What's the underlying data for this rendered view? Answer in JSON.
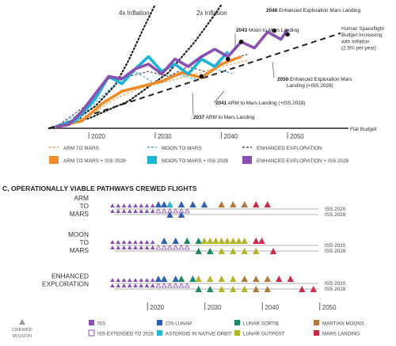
{
  "chart_data": [
    {
      "type": "line",
      "title": "",
      "xlabel": "",
      "ylabel": "",
      "x_ticks": [
        2020,
        2030,
        2040,
        2050
      ],
      "xlim": [
        2014,
        2058
      ],
      "ylim": [
        0,
        100
      ],
      "grid": false,
      "budget_curves": [
        {
          "name": "4x Inflation",
          "style": "dotted",
          "points": [
            [
              2014,
              0
            ],
            [
              2018,
              7
            ],
            [
              2021,
              18
            ],
            [
              2024,
              35
            ],
            [
              2026,
              55
            ],
            [
              2028,
              78
            ],
            [
              2030,
              100
            ]
          ]
        },
        {
          "name": "2x Inflation",
          "style": "dotted",
          "points": [
            [
              2014,
              0
            ],
            [
              2020,
              8
            ],
            [
              2026,
              22
            ],
            [
              2032,
              45
            ],
            [
              2036,
              70
            ],
            [
              2039,
              92
            ],
            [
              2040,
              100
            ]
          ]
        },
        {
          "name": "Human Spaceflight Budget Increasing with Inflation (2.5% per year)",
          "style": "dashed",
          "points": [
            [
              2014,
              0
            ],
            [
              2058,
              77
            ]
          ]
        },
        {
          "name": "Flat Budget",
          "style": "solid",
          "points": [
            [
              2014,
              0
            ],
            [
              2058,
              0
            ]
          ]
        }
      ],
      "curve_labels": {
        "inflation_4x": "4x Inflation",
        "inflation_2x": "2x Inflation",
        "budget_growth": "Human Spaceflight Budget Increasing with Inflation (2.5% per year)",
        "flat": "Flat Budget"
      },
      "series": [
        {
          "name": "ARM TO MARS",
          "style": "dashed",
          "color": "#f5a05a",
          "points": [
            [
              2015,
              1
            ],
            [
              2020,
              10
            ],
            [
              2024,
              24
            ],
            [
              2028,
              33
            ],
            [
              2032,
              38
            ],
            [
              2036,
              44
            ],
            [
              2040,
              50
            ],
            [
              2044,
              55
            ]
          ]
        },
        {
          "name": "MOON TO MARS",
          "style": "dashed",
          "color": "#3fb8d6",
          "points": [
            [
              2015,
              1
            ],
            [
              2020,
              16
            ],
            [
              2024,
              36
            ],
            [
              2027,
              46
            ],
            [
              2030,
              36
            ],
            [
              2033,
              44
            ],
            [
              2036,
              40
            ],
            [
              2039,
              48
            ],
            [
              2042,
              44
            ]
          ]
        },
        {
          "name": "ENHANCED EXPLORATION",
          "style": "dashed",
          "color": "#555555",
          "points": [
            [
              2015,
              1
            ],
            [
              2020,
              20
            ],
            [
              2023,
              40
            ],
            [
              2026,
              42
            ],
            [
              2029,
              46
            ],
            [
              2032,
              42
            ],
            [
              2035,
              50
            ],
            [
              2038,
              45
            ],
            [
              2041,
              55
            ],
            [
              2044,
              60
            ]
          ]
        },
        {
          "name": "ARM TO MARS + ISS 2028",
          "style": "solid",
          "color": "#f28c28",
          "points": [
            [
              2015,
              1
            ],
            [
              2019,
              6
            ],
            [
              2022,
              20
            ],
            [
              2025,
              30
            ],
            [
              2028,
              34
            ],
            [
              2031,
              38
            ],
            [
              2034,
              45
            ],
            [
              2037,
              41
            ],
            [
              2040,
              52
            ],
            [
              2043,
              58
            ]
          ]
        },
        {
          "name": "MOON TO MARS + ISS 2028",
          "style": "solid",
          "color": "#1bb3d9",
          "points": [
            [
              2015,
              1
            ],
            [
              2018,
              6
            ],
            [
              2021,
              24
            ],
            [
              2023,
              42
            ],
            [
              2025,
              36
            ],
            [
              2027,
              48
            ],
            [
              2029,
              58
            ],
            [
              2031,
              46
            ],
            [
              2033,
              52
            ],
            [
              2035,
              44
            ],
            [
              2037,
              56
            ],
            [
              2039,
              50
            ],
            [
              2041,
              62
            ]
          ]
        },
        {
          "name": "ENHANCED EXPLORATION + ISS 2028",
          "style": "solid",
          "color": "#8a4fb2",
          "points": [
            [
              2015,
              1
            ],
            [
              2017,
              3
            ],
            [
              2019,
              14
            ],
            [
              2021,
              28
            ],
            [
              2023,
              42
            ],
            [
              2025,
              40
            ],
            [
              2027,
              48
            ],
            [
              2029,
              52
            ],
            [
              2031,
              44
            ],
            [
              2033,
              56
            ],
            [
              2035,
              50
            ],
            [
              2037,
              58
            ],
            [
              2039,
              64
            ],
            [
              2041,
              58
            ],
            [
              2043,
              70
            ],
            [
              2045,
              65
            ],
            [
              2047,
              78
            ],
            [
              2049,
              72
            ],
            [
              2050,
              80
            ]
          ]
        }
      ],
      "legend_position": "bottom",
      "annotations": [
        {
          "text": "2048 Enhanced Exploration Mars Landing",
          "bold": "2048",
          "x": 2048,
          "y": 79
        },
        {
          "text": "2043 Moon to Mars Landing",
          "bold": "2043",
          "x": 2043,
          "y": 70
        },
        {
          "text": "2050 Enhanced Exploration Mars Landing (+ISS 2028)",
          "bold": "2050",
          "x": 2050,
          "y": 76
        },
        {
          "text": "2041 ARM to Mars Landing (+ISS 2028)",
          "bold": "2041",
          "x": 2041,
          "y": 56
        },
        {
          "text": "2037 ARM to Mars Landing",
          "bold": "2037",
          "x": 2037,
          "y": 42
        }
      ]
    },
    {
      "type": "scatter",
      "title": "C, OPERATIONALLY VIABLE PATHWAYS CREWED FLIGHTS",
      "x_ticks": [
        2020,
        2030,
        2040,
        2050
      ],
      "categories": [
        "ARM TO MARS",
        "MOON TO MARS",
        "ENHANCED EXPLORATION"
      ],
      "category_labels": [
        [
          "ARM",
          "TO",
          "MARS"
        ],
        [
          "MOON",
          "TO",
          "MARS"
        ],
        [
          "ENHANCED",
          "EXPLORATION"
        ]
      ],
      "row_end_labels": [
        "ISS 2020",
        "ISS 2028"
      ],
      "mission_types": [
        {
          "name": "ISS",
          "color": "#8a4fb2",
          "style": "filled"
        },
        {
          "name": "ISS EXTENDED TO 2028",
          "color": "#8a4fb2",
          "style": "outline"
        },
        {
          "name": "CIS-LUNAR",
          "color": "#2f5fb5",
          "style": "filled"
        },
        {
          "name": "ASTEROID IN NATIVE ORBIT",
          "color": "#2ab3d3",
          "style": "filled"
        },
        {
          "name": "LUNAR SORTIE",
          "color": "#1a8a62",
          "style": "filled"
        },
        {
          "name": "LUNAR OUTPOST",
          "color": "#b5b528",
          "style": "filled"
        },
        {
          "name": "MARTIAN MOONS",
          "color": "#b07a3a",
          "style": "filled"
        },
        {
          "name": "MARS LANDING",
          "color": "#cc2b4a",
          "style": "filled"
        }
      ],
      "flights": [
        {
          "row": 0,
          "lane": 0,
          "years": [
            2015,
            2016,
            2017,
            2018,
            2019,
            2020,
            2021,
            2022
          ],
          "type": "ISS"
        },
        {
          "row": 0,
          "lane": 0,
          "years": [
            2023,
            2024
          ],
          "type": "CIS-LUNAR"
        },
        {
          "row": 0,
          "lane": 0,
          "years": [
            2025
          ],
          "type": "ASTEROID IN NATIVE ORBIT"
        },
        {
          "row": 0,
          "lane": 0,
          "years": [
            2027,
            2029,
            2031
          ],
          "type": "CIS-LUNAR"
        },
        {
          "row": 0,
          "lane": 0,
          "years": [
            2034,
            2036,
            2038
          ],
          "type": "MARTIAN MOONS"
        },
        {
          "row": 0,
          "lane": 0,
          "years": [
            2040,
            2042
          ],
          "type": "MARS LANDING"
        },
        {
          "row": 0,
          "lane": 1,
          "years": [
            2015,
            2016,
            2017,
            2018,
            2019,
            2020,
            2021,
            2022
          ],
          "type": "ISS"
        },
        {
          "row": 0,
          "lane": 1,
          "years": [
            2023,
            2024,
            2025,
            2026,
            2027,
            2028
          ],
          "type": "ISS EXTENDED TO 2028"
        },
        {
          "row": 0,
          "lane": 2,
          "years": [
            2025,
            2027
          ],
          "type": "CIS-LUNAR"
        },
        {
          "row": 1,
          "lane": 0,
          "years": [
            2015,
            2016,
            2017,
            2018,
            2019,
            2020,
            2021,
            2022
          ],
          "type": "ISS"
        },
        {
          "row": 1,
          "lane": 0,
          "years": [
            2024,
            2026
          ],
          "type": "CIS-LUNAR"
        },
        {
          "row": 1,
          "lane": 0,
          "years": [
            2028,
            2030
          ],
          "type": "LUNAR SORTIE"
        },
        {
          "row": 1,
          "lane": 0,
          "years": [
            2031,
            2032,
            2033,
            2034,
            2035,
            2036,
            2037,
            2038
          ],
          "type": "LUNAR OUTPOST"
        },
        {
          "row": 1,
          "lane": 0,
          "years": [
            2040,
            2041
          ],
          "type": "MARS LANDING"
        },
        {
          "row": 1,
          "lane": 1,
          "years": [
            2015,
            2016,
            2017,
            2018,
            2019,
            2020,
            2021,
            2022
          ],
          "type": "ISS"
        },
        {
          "row": 1,
          "lane": 1,
          "years": [
            2023,
            2024,
            2025,
            2026,
            2027,
            2028
          ],
          "type": "ISS EXTENDED TO 2028"
        },
        {
          "row": 1,
          "lane": 2,
          "years": [
            2030,
            2032
          ],
          "type": "LUNAR SORTIE"
        },
        {
          "row": 1,
          "lane": 2,
          "years": [
            2034,
            2036,
            2038,
            2040
          ],
          "type": "LUNAR OUTPOST"
        },
        {
          "row": 1,
          "lane": 2,
          "years": [
            2043
          ],
          "type": "MARS LANDING"
        },
        {
          "row": 2,
          "lane": 0,
          "years": [
            2015,
            2016,
            2017,
            2018,
            2019,
            2020,
            2021,
            2022
          ],
          "type": "ISS"
        },
        {
          "row": 2,
          "lane": 0,
          "years": [
            2023,
            2024,
            2026
          ],
          "type": "CIS-LUNAR"
        },
        {
          "row": 2,
          "lane": 0,
          "years": [
            2027,
            2029
          ],
          "type": "LUNAR SORTIE"
        },
        {
          "row": 2,
          "lane": 0,
          "years": [
            2030,
            2032,
            2034,
            2036
          ],
          "type": "LUNAR OUTPOST"
        },
        {
          "row": 2,
          "lane": 0,
          "years": [
            2038,
            2040,
            2042
          ],
          "type": "MARTIAN MOONS"
        },
        {
          "row": 2,
          "lane": 0,
          "years": [
            2044,
            2046
          ],
          "type": "MARS LANDING"
        },
        {
          "row": 2,
          "lane": 1,
          "years": [
            2015,
            2016,
            2017,
            2018,
            2019,
            2020,
            2021,
            2022
          ],
          "type": "ISS"
        },
        {
          "row": 2,
          "lane": 1,
          "years": [
            2023,
            2024,
            2025,
            2026,
            2027,
            2028
          ],
          "type": "ISS EXTENDED TO 2028"
        },
        {
          "row": 2,
          "lane": 2,
          "years": [
            2030,
            2032
          ],
          "type": "LUNAR SORTIE"
        },
        {
          "row": 2,
          "lane": 2,
          "years": [
            2034,
            2036,
            2038
          ],
          "type": "LUNAR OUTPOST"
        },
        {
          "row": 2,
          "lane": 2,
          "years": [
            2040,
            2042
          ],
          "type": "MARTIAN MOONS"
        },
        {
          "row": 2,
          "lane": 2,
          "years": [
            2048,
            2050
          ],
          "type": "MARS LANDING"
        }
      ],
      "legend_key": {
        "crewed_mission_label": [
          "CREWED",
          "MISSION"
        ]
      }
    }
  ]
}
